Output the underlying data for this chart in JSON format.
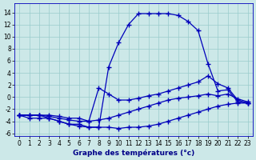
{
  "bg_color": "#cce8e8",
  "grid_color": "#99cccc",
  "line_color": "#0000bb",
  "xlabel": "Graphe des températures (°c)",
  "xlabel_color": "#000088",
  "ylim": [
    -6.5,
    15.5
  ],
  "xlim": [
    -0.5,
    23.5
  ],
  "yticks": [
    -6,
    -4,
    -2,
    0,
    2,
    4,
    6,
    8,
    10,
    12,
    14
  ],
  "xticks": [
    0,
    1,
    2,
    3,
    4,
    5,
    6,
    7,
    8,
    9,
    10,
    11,
    12,
    13,
    14,
    15,
    16,
    17,
    18,
    19,
    20,
    21,
    22,
    23
  ],
  "curve1_x": [
    0,
    1,
    2,
    3,
    4,
    5,
    6,
    7,
    8,
    9,
    10,
    11,
    12,
    13,
    14,
    15,
    16,
    17,
    18,
    19,
    20,
    21,
    22,
    23
  ],
  "curve1_y": [
    -3,
    -3,
    -3,
    -3.5,
    -4,
    -4.5,
    -4.8,
    -5,
    -5,
    5,
    9,
    12,
    13.8,
    13.8,
    13.8,
    13.8,
    13.5,
    12.5,
    11,
    5.5,
    1,
    1.2,
    -0.8,
    -1
  ],
  "curve2_x": [
    0,
    1,
    2,
    3,
    4,
    5,
    6,
    7,
    8,
    9,
    10,
    11,
    12,
    13,
    14,
    15,
    16,
    17,
    18,
    19,
    20,
    21,
    22,
    23
  ],
  "curve2_y": [
    -3,
    -3.5,
    -3.5,
    -3.5,
    -4,
    -4.5,
    -4.5,
    -5,
    -5,
    -5,
    -5.2,
    -5,
    -5,
    -4.8,
    -4.5,
    -4,
    -3.5,
    -3,
    -2.5,
    -2,
    -1.5,
    -1.2,
    -1,
    -1
  ],
  "curve3_x": [
    0,
    1,
    2,
    3,
    4,
    5,
    6,
    7,
    8,
    9,
    10,
    11,
    12,
    13,
    14,
    15,
    16,
    17,
    18,
    19,
    20,
    21,
    22,
    23
  ],
  "curve3_y": [
    -3,
    -3,
    -3,
    -3,
    -3.2,
    -3.5,
    -3.5,
    -4,
    1.5,
    0.5,
    -0.5,
    -0.5,
    -0.2,
    0.2,
    0.5,
    1,
    1.5,
    2,
    2.5,
    3.5,
    2.2,
    1.5,
    -0.5,
    -1
  ],
  "curve4_x": [
    0,
    1,
    2,
    3,
    4,
    5,
    6,
    7,
    8,
    9,
    10,
    11,
    12,
    13,
    14,
    15,
    16,
    17,
    18,
    19,
    20,
    21,
    22,
    23
  ],
  "curve4_y": [
    -3,
    -3,
    -3,
    -3.2,
    -3.5,
    -3.8,
    -4,
    -4,
    -3.8,
    -3.5,
    -3,
    -2.5,
    -2,
    -1.5,
    -1,
    -0.5,
    -0.2,
    0,
    0.2,
    0.5,
    0.2,
    0.5,
    -0.3,
    -0.8
  ],
  "marker": "+",
  "markersize": 4,
  "linewidth": 0.9,
  "tick_fontsize": 5.5,
  "xlabel_fontsize": 6.5
}
